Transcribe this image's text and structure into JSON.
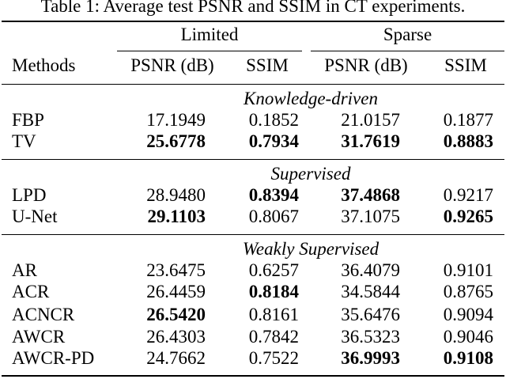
{
  "caption": "Table 1: Average test PSNR and SSIM in CT experiments.",
  "header": {
    "group_limited": "Limited",
    "group_sparse": "Sparse",
    "methods": "Methods",
    "psnr": "PSNR (dB)",
    "ssim": "SSIM"
  },
  "sections": [
    {
      "title": "Knowledge-driven",
      "rows": [
        {
          "method": "FBP",
          "l_psnr": "17.1949",
          "l_ssim": "0.1852",
          "s_psnr": "21.0157",
          "s_ssim": "0.1877"
        },
        {
          "method": "TV",
          "l_psnr": "25.6778",
          "l_ssim": "0.7934",
          "s_psnr": "31.7619",
          "s_ssim": "0.8883"
        }
      ]
    },
    {
      "title": "Supervised",
      "rows": [
        {
          "method": "LPD",
          "l_psnr": "28.9480",
          "l_ssim": "0.8394",
          "s_psnr": "37.4868",
          "s_ssim": "0.9217"
        },
        {
          "method": "U-Net",
          "l_psnr": "29.1103",
          "l_ssim": "0.8067",
          "s_psnr": "37.1075",
          "s_ssim": "0.9265"
        }
      ]
    },
    {
      "title": "Weakly Supervised",
      "rows": [
        {
          "method": "AR",
          "l_psnr": "23.6475",
          "l_ssim": "0.6257",
          "s_psnr": "36.4079",
          "s_ssim": "0.9101"
        },
        {
          "method": "ACR",
          "l_psnr": "26.4459",
          "l_ssim": "0.8184",
          "s_psnr": "34.5844",
          "s_ssim": "0.8765"
        },
        {
          "method": "ACNCR",
          "l_psnr": "26.5420",
          "l_ssim": "0.8161",
          "s_psnr": "35.6476",
          "s_ssim": "0.9094"
        },
        {
          "method": "AWCR",
          "l_psnr": "26.4303",
          "l_ssim": "0.7842",
          "s_psnr": "36.5323",
          "s_ssim": "0.9046"
        },
        {
          "method": "AWCR-PD",
          "l_psnr": "24.7662",
          "l_ssim": "0.7522",
          "s_psnr": "36.9993",
          "s_ssim": "0.9108"
        }
      ]
    }
  ],
  "bold_cells": [
    "1.0.l_psnr",
    "1.0.l_ssim",
    "1.0.s_psnr",
    "1.0.s_ssim",
    "1.1.s_psnr",
    "1.2.l_psnr",
    "1.2.l_ssim",
    "1.3.s_ssim",
    "1.5.l_ssim",
    "1.6.l_psnr",
    "1.8.s_psnr",
    "1.8.s_ssim"
  ]
}
